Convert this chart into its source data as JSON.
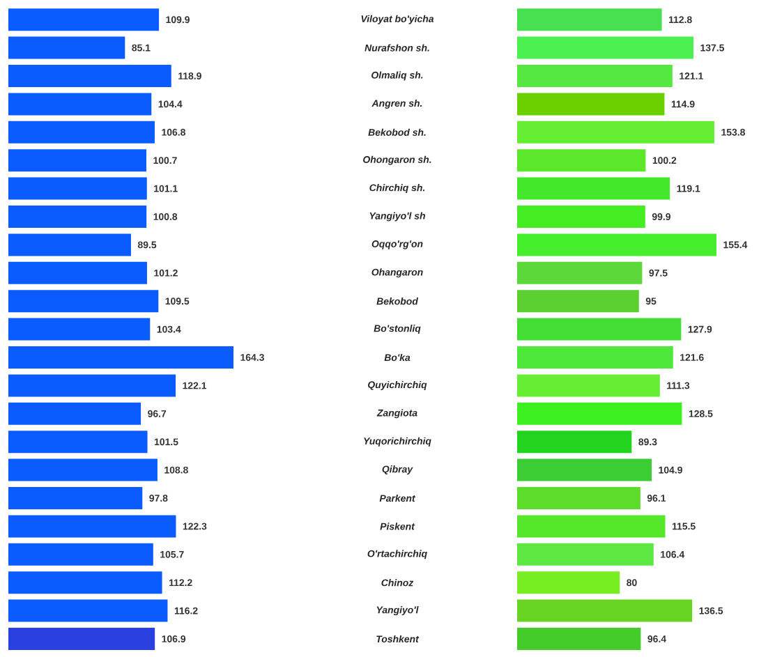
{
  "chart_data": [
    {
      "type": "bar",
      "orientation": "horizontal",
      "data_labels": true,
      "tick_labels": false,
      "categories": [
        null,
        null,
        null,
        null,
        null,
        null,
        null,
        null,
        null,
        null,
        null,
        null,
        null,
        null,
        null,
        null,
        null,
        null,
        null,
        null,
        null,
        null,
        null
      ],
      "values": [
        109.9,
        85.1,
        118.9,
        104.4,
        106.8,
        100.7,
        101.1,
        100.8,
        89.5,
        101.2,
        109.5,
        103.4,
        164.3,
        122.1,
        96.7,
        101.5,
        108.8,
        97.8,
        122.3,
        105.7,
        112.2,
        116.2,
        106.9
      ],
      "colors": [
        "#0a5cff",
        "#0a5cff",
        "#0a5cff",
        "#0a5cff",
        "#0a5cff",
        "#0a5cff",
        "#0a5cff",
        "#0a5cff",
        "#0a5cff",
        "#0a5cff",
        "#0a5cff",
        "#0a5cff",
        "#0a5cff",
        "#0a5cff",
        "#0a5cff",
        "#0a5cff",
        "#0a5cff",
        "#0a5cff",
        "#0a5cff",
        "#0a5cff",
        "#0a5cff",
        "#0a5cff",
        "#2a40e0"
      ]
    },
    {
      "type": "bar",
      "orientation": "horizontal",
      "data_labels": true,
      "tick_labels": "y",
      "categories": [
        "Viloyat bo'yicha",
        "Nurafshon sh.",
        "Olmaliq sh.",
        "Angren sh.",
        "Bekobod sh.",
        "Ohongaron sh.",
        "Chirchiq sh.",
        "Yangiyo'l sh",
        "Oqqo'rg'on",
        "Ohangaron",
        "Bekobod",
        "Bo'stonliq",
        "Bo'ka",
        "Quyichirchiq",
        "Zangiota",
        "Yuqorichirchiq",
        "Qibray",
        "Parkent",
        "Piskent",
        "O'rtachirchiq",
        "Chinoz",
        "Yangiyo'l",
        "Toshkent"
      ],
      "values": [
        112.8,
        137.5,
        121.1,
        114.9,
        153.8,
        100.2,
        119.1,
        99.9,
        155.4,
        97.5,
        95,
        127.9,
        121.6,
        111.3,
        128.5,
        89.3,
        104.9,
        96.1,
        115.5,
        106.4,
        80,
        136.5,
        96.4
      ],
      "colors": [
        "#46e050",
        "#4cf050",
        "#55e840",
        "#6cd000",
        "#66ee33",
        "#5ce82a",
        "#44e82a",
        "#44ee22",
        "#44ee2a",
        "#5cd83a",
        "#5cd030",
        "#44dd33",
        "#4ee83a",
        "#66ee33",
        "#3cf020",
        "#22d41e",
        "#3ccc33",
        "#5cdd2a",
        "#55e82a",
        "#5ce840",
        "#77ee22",
        "#66d420",
        "#44cc2a"
      ]
    }
  ]
}
